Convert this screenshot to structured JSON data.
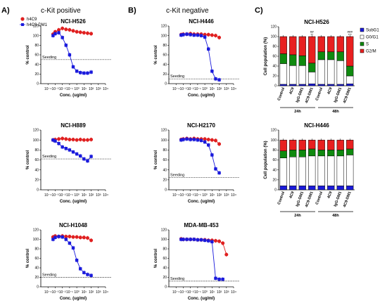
{
  "panels": {
    "A": {
      "letter": "A)",
      "title": "c-Kit positive"
    },
    "B": {
      "letter": "B)",
      "title": "c-Kit negative"
    },
    "C": {
      "letter": "C)"
    }
  },
  "colors": {
    "h4C9": "#e02020",
    "h4C9_DM1": "#1a1adc",
    "SubG1": "#1a1adc",
    "G0G1": "#ffffff",
    "S": "#0f8a0f",
    "G2M": "#e82020"
  },
  "legend": {
    "h4C9": "h4C9",
    "h4C9_DM1": "h4C9-DM1"
  },
  "chart_data": [
    {
      "id": "H526",
      "type": "scatter",
      "title": "NCI-H526",
      "ylabel": "% control",
      "xlabel": "Conc. (ug/ml)",
      "xscale": "log",
      "xlim": [
        -5,
        4
      ],
      "xticks": [
        "10⁻⁴",
        "10⁻³",
        "10⁻²",
        "10⁻¹",
        "10⁰",
        "10¹",
        "10²",
        "10³",
        "10⁴"
      ],
      "ylim": [
        0,
        120
      ],
      "yticks": [
        "0",
        "20",
        "40",
        "60",
        "80",
        "100",
        "120"
      ],
      "seeding": {
        "label": "Seeding",
        "y": 50
      },
      "legend_position": "top-left",
      "series": [
        {
          "name": "h4C9",
          "x": [
            -3.3,
            -3,
            -2.5,
            -2,
            -1.5,
            -1,
            -0.5,
            0,
            0.5,
            1,
            1.5,
            2
          ],
          "y": [
            103,
            108,
            112,
            115,
            113,
            112,
            110,
            108,
            107,
            106,
            105,
            104
          ]
        },
        {
          "name": "h4C9-DM1",
          "x": [
            -3.3,
            -3,
            -2.5,
            -2,
            -1.5,
            -1,
            -0.5,
            0,
            0.5,
            1,
            1.5,
            2
          ],
          "y": [
            100,
            104,
            106,
            96,
            80,
            60,
            35,
            26,
            23,
            22,
            22,
            24
          ]
        }
      ]
    },
    {
      "id": "H889",
      "type": "scatter",
      "title": "NCI-H889",
      "ylabel": "% control",
      "xlabel": "Conc. (ug/ml)",
      "xscale": "log",
      "xlim": [
        -5,
        4
      ],
      "xticks": [
        "10⁻⁴",
        "10⁻³",
        "10⁻²",
        "10⁻¹",
        "10⁰",
        "10¹",
        "10²",
        "10³",
        "10⁴"
      ],
      "ylim": [
        0,
        120
      ],
      "yticks": [
        "0",
        "20",
        "40",
        "60",
        "80",
        "100",
        "120"
      ],
      "seeding": {
        "label": "Seeding",
        "y": 62
      },
      "series": [
        {
          "name": "h4C9",
          "x": [
            -3.3,
            -3,
            -2.5,
            -2,
            -1.5,
            -1,
            -0.5,
            0,
            0.5,
            1,
            1.5,
            2
          ],
          "y": [
            100,
            101,
            102,
            103,
            102,
            101,
            101,
            100,
            101,
            100,
            100,
            101
          ]
        },
        {
          "name": "h4C9-DM1",
          "x": [
            -3.3,
            -3,
            -2.5,
            -2,
            -1.5,
            -1,
            -0.5,
            0,
            0.5,
            1,
            1.5,
            2
          ],
          "y": [
            100,
            98,
            93,
            86,
            83,
            80,
            76,
            72,
            68,
            62,
            58,
            67
          ]
        }
      ]
    },
    {
      "id": "H1048",
      "type": "scatter",
      "title": "NCI-H1048",
      "ylabel": "% control",
      "xlabel": "Conc. (ug/ml)",
      "xscale": "log",
      "xlim": [
        -5,
        4
      ],
      "xticks": [
        "10⁻⁴",
        "10⁻³",
        "10⁻²",
        "10⁻¹",
        "10⁰",
        "10¹",
        "10²",
        "10³",
        "10⁴"
      ],
      "ylim": [
        0,
        120
      ],
      "yticks": [
        "0",
        "20",
        "40",
        "60",
        "80",
        "100",
        "120"
      ],
      "seeding": {
        "label": "Seeding",
        "y": 20
      },
      "series": [
        {
          "name": "h4C9",
          "x": [
            -3.3,
            -3,
            -2.5,
            -2,
            -1.5,
            -1,
            -0.5,
            0,
            0.5,
            1,
            1.5,
            2
          ],
          "y": [
            105,
            107,
            106,
            107,
            106,
            106,
            105,
            105,
            104,
            104,
            103,
            98
          ]
        },
        {
          "name": "h4C9-DM1",
          "x": [
            -3.3,
            -3,
            -2.5,
            -2,
            -1.5,
            -1,
            -0.5,
            0,
            0.5,
            1,
            1.5,
            2
          ],
          "y": [
            100,
            104,
            106,
            105,
            100,
            92,
            82,
            56,
            38,
            30,
            26,
            24
          ]
        }
      ]
    },
    {
      "id": "H446",
      "type": "scatter",
      "title": "NCI-H446",
      "ylabel": "% control",
      "xlabel": "Conc. (ug/ml)",
      "xscale": "log",
      "xlim": [
        -5,
        4
      ],
      "xticks": [
        "10⁻⁴",
        "10⁻³",
        "10⁻²",
        "10⁻¹",
        "10⁰",
        "10¹",
        "10²",
        "10³",
        "10⁴"
      ],
      "ylim": [
        0,
        120
      ],
      "yticks": [
        "0",
        "20",
        "40",
        "60",
        "80",
        "100",
        "120"
      ],
      "seeding": {
        "label": "Seeding",
        "y": 10
      },
      "series": [
        {
          "name": "h4C9",
          "x": [
            -3.3,
            -3,
            -2.5,
            -2,
            -1.5,
            -1,
            -0.5,
            0,
            0.5,
            1,
            1.5,
            2
          ],
          "y": [
            102,
            103,
            103,
            104,
            103,
            103,
            103,
            102,
            102,
            101,
            100,
            96
          ]
        },
        {
          "name": "h4C9-DM1",
          "x": [
            -3.3,
            -3,
            -2.5,
            -2,
            -1.5,
            -1,
            -0.5,
            0,
            0.5,
            1,
            1.5,
            2
          ],
          "y": [
            101,
            102,
            103,
            102,
            101,
            101,
            100,
            97,
            72,
            26,
            10,
            8
          ]
        }
      ]
    },
    {
      "id": "H2170",
      "type": "scatter",
      "title": "NCI-H2170",
      "ylabel": "% control",
      "xlabel": "Conc. (ug/ml)",
      "xscale": "log",
      "xlim": [
        -5,
        4
      ],
      "xticks": [
        "10⁻⁴",
        "10⁻³",
        "10⁻²",
        "10⁻¹",
        "10⁰",
        "10¹",
        "10²",
        "10³",
        "10⁴"
      ],
      "ylim": [
        0,
        120
      ],
      "yticks": [
        "0",
        "20",
        "40",
        "60",
        "80",
        "100",
        "120"
      ],
      "seeding": {
        "label": "Seeding",
        "y": 25
      },
      "series": [
        {
          "name": "h4C9",
          "x": [
            -3.3,
            -3,
            -2.5,
            -2,
            -1.5,
            -1,
            -0.5,
            0,
            0.5,
            1,
            1.5,
            2
          ],
          "y": [
            101,
            102,
            103,
            102,
            103,
            102,
            102,
            102,
            101,
            100,
            99,
            92
          ]
        },
        {
          "name": "h4C9-DM1",
          "x": [
            -3.3,
            -3,
            -2.5,
            -2,
            -1.5,
            -1,
            -0.5,
            0,
            0.5,
            1,
            1.5,
            2
          ],
          "y": [
            100,
            101,
            102,
            101,
            101,
            100,
            99,
            96,
            90,
            70,
            42,
            34
          ]
        }
      ]
    },
    {
      "id": "MDA453",
      "type": "scatter",
      "title": "MDA-MB-453",
      "ylabel": "% control",
      "xlabel": "Conc. (ug/ml)",
      "xscale": "log",
      "xlim": [
        -5,
        4
      ],
      "xticks": [
        "10⁻⁴",
        "10⁻³",
        "10⁻²",
        "10⁻¹",
        "10⁰",
        "10¹",
        "10²",
        "10³",
        "10⁴"
      ],
      "ylim": [
        0,
        120
      ],
      "yticks": [
        "0",
        "20",
        "40",
        "60",
        "80",
        "100",
        "120"
      ],
      "seeding": {
        "label": "Seeding",
        "y": 12
      },
      "series": [
        {
          "name": "h4C9",
          "x": [
            -3.3,
            -3,
            -2.5,
            -2,
            -1.5,
            -1,
            -0.5,
            0,
            0.5,
            1,
            1.5,
            2,
            2.5,
            3
          ],
          "y": [
            101,
            100,
            100,
            100,
            100,
            99,
            99,
            99,
            98,
            98,
            97,
            96,
            92,
            68
          ]
        },
        {
          "name": "h4C9-DM1",
          "x": [
            -3.3,
            -3,
            -2.5,
            -2,
            -1.5,
            -1,
            -0.5,
            0,
            0.5,
            1,
            1.5,
            2,
            2.5
          ],
          "y": [
            100,
            100,
            100,
            100,
            100,
            99,
            99,
            98,
            97,
            95,
            18,
            16,
            16
          ]
        }
      ]
    },
    {
      "id": "C_H526",
      "type": "bar",
      "stacked": true,
      "title": "NCI-H526",
      "ylabel": "Cell population (%)",
      "ylim": [
        0,
        120
      ],
      "yticks": [
        "0",
        "20",
        "40",
        "60",
        "80",
        "100",
        "120"
      ],
      "categories": [
        "Control",
        "4C9",
        "IgG-DM1",
        "4C9-DM1",
        "Control",
        "4C9",
        "IgG-DM1",
        "4C9-DM1"
      ],
      "groups": [
        {
          "label": "24h",
          "from": 0,
          "to": 3
        },
        {
          "label": "48h",
          "from": 4,
          "to": 7
        }
      ],
      "legend": [
        "SubG1",
        "G0/G1",
        "S",
        "G2/M"
      ],
      "legend_position": "right",
      "annotations": [
        {
          "index": 3,
          "text": "##\n**"
        },
        {
          "index": 7,
          "text": "###\n***"
        }
      ],
      "series": [
        {
          "name": "SubG1",
          "values": [
            3,
            3,
            3,
            4,
            3,
            3,
            3,
            4
          ]
        },
        {
          "name": "G0/G1",
          "values": [
            42,
            38,
            38,
            24,
            50,
            50,
            48,
            16
          ]
        },
        {
          "name": "S",
          "values": [
            20,
            22,
            20,
            18,
            16,
            16,
            18,
            20
          ]
        },
        {
          "name": "G2/M",
          "values": [
            35,
            37,
            39,
            54,
            31,
            31,
            31,
            60
          ]
        }
      ]
    },
    {
      "id": "C_H446",
      "type": "bar",
      "stacked": true,
      "title": "NCI-H446",
      "ylabel": "Cell population (%)",
      "ylim": [
        0,
        120
      ],
      "yticks": [
        "0",
        "20",
        "40",
        "60",
        "80",
        "100",
        "120"
      ],
      "categories": [
        "Control",
        "4C9",
        "IgG-DM1",
        "4C9-DM1",
        "Control",
        "4C9",
        "IgG-DM1",
        "4C9-DM1"
      ],
      "groups": [
        {
          "label": "24h",
          "from": 0,
          "to": 3
        },
        {
          "label": "48h",
          "from": 4,
          "to": 7
        }
      ],
      "series": [
        {
          "name": "SubG1",
          "values": [
            8,
            8,
            8,
            8,
            8,
            8,
            8,
            8
          ]
        },
        {
          "name": "G0/G1",
          "values": [
            56,
            58,
            58,
            60,
            60,
            60,
            60,
            62
          ]
        },
        {
          "name": "S",
          "values": [
            14,
            14,
            14,
            14,
            12,
            12,
            12,
            12
          ]
        },
        {
          "name": "G2/M",
          "values": [
            22,
            20,
            20,
            18,
            20,
            20,
            20,
            18
          ]
        }
      ]
    }
  ]
}
